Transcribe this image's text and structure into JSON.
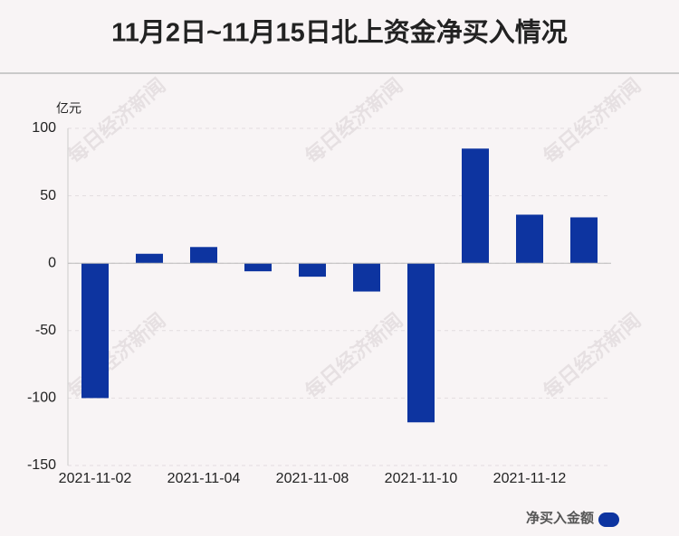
{
  "chart_data": {
    "type": "bar",
    "title": "11月2日~11月15日北上资金净买入情况",
    "y_unit": "亿元",
    "categories": [
      "2021-11-02",
      null,
      "2021-11-04",
      null,
      "2021-11-08",
      null,
      "2021-11-10",
      null,
      "2021-11-12",
      null
    ],
    "series": [
      {
        "name": "净买入金额",
        "color": "#0d34a0",
        "values": [
          -100,
          7,
          12,
          -6,
          -10,
          -21,
          -118,
          85,
          36,
          34
        ]
      }
    ],
    "ylim": [
      -150,
      100
    ],
    "yticks": [
      -150,
      -100,
      -50,
      0,
      50,
      100
    ],
    "grid": true,
    "legend": "bottom-right"
  },
  "watermark": "每日经济新闻"
}
